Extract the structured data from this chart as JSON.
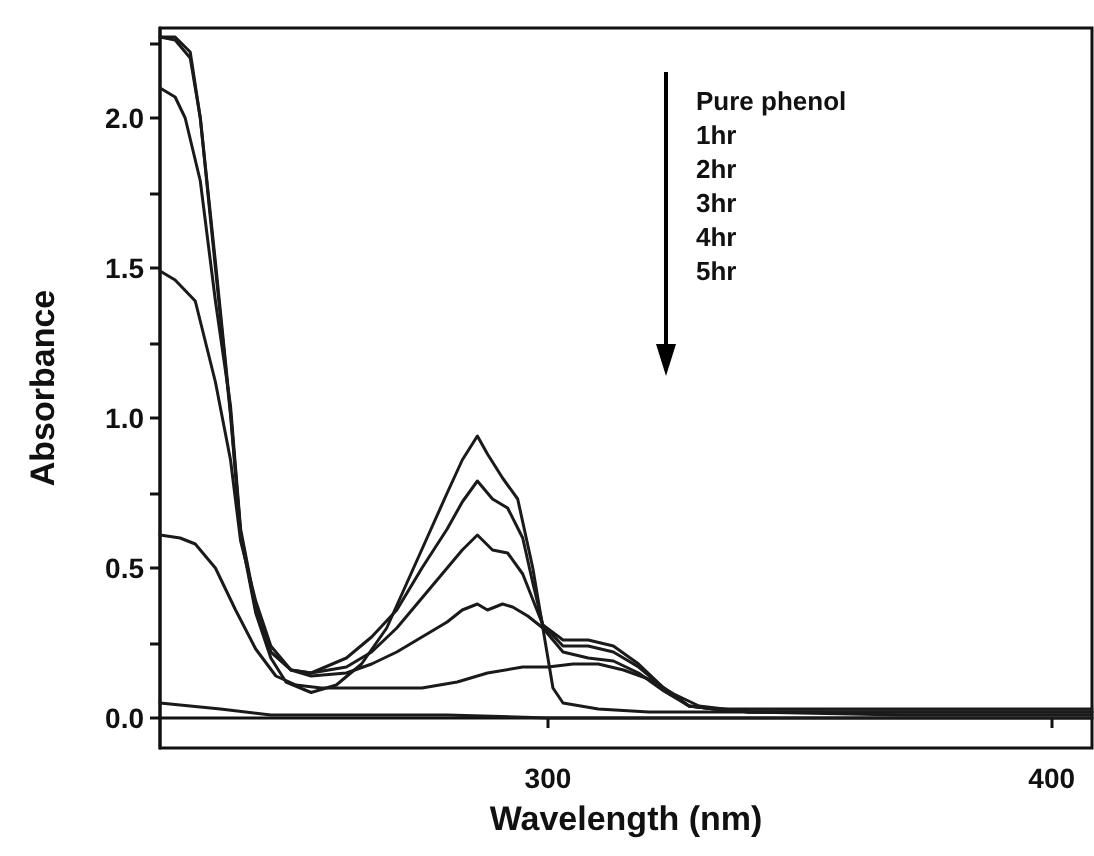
{
  "chart_data": {
    "type": "line",
    "xlabel": "Wavelength (nm)",
    "ylabel": "Absorbance",
    "xlim": [
      223,
      408
    ],
    "xticks": [
      300,
      400
    ],
    "ylim": [
      -0.1,
      2.3
    ],
    "yticks": [
      {
        "value": 0,
        "label": "0.0"
      },
      {
        "value": 0.25,
        "label": null
      },
      {
        "value": 0.5,
        "label": "0.5"
      },
      {
        "value": 0.75,
        "label": null
      },
      {
        "value": 1,
        "label": "1.0"
      },
      {
        "value": 1.25,
        "label": null
      },
      {
        "value": 1.5,
        "label": "1.5"
      },
      {
        "value": 1.75,
        "label": null
      },
      {
        "value": 2,
        "label": "2.0"
      },
      {
        "value": 2.25,
        "label": null
      }
    ],
    "annotations": [
      "Pure phenol",
      "1hr",
      "2hr",
      "3hr",
      "4hr",
      "5hr"
    ],
    "series": [
      {
        "color": "#1a1a1a",
        "x": [
          223,
          226,
          229,
          231,
          234,
          237,
          239,
          242,
          245,
          248,
          253,
          258,
          263,
          268,
          272,
          276,
          280,
          283,
          286,
          288,
          291,
          294,
          297,
          299,
          301,
          303,
          310,
          320,
          340,
          370,
          408
        ],
        "values": [
          2.27,
          2.27,
          2.22,
          2.0,
          1.5,
          1.01,
          0.61,
          0.35,
          0.2,
          0.12,
          0.085,
          0.11,
          0.18,
          0.3,
          0.45,
          0.6,
          0.75,
          0.86,
          0.94,
          0.88,
          0.8,
          0.73,
          0.5,
          0.3,
          0.1,
          0.05,
          0.03,
          0.02,
          0.02,
          0.02,
          0.02
        ]
      },
      {
        "color": "#1a1a1a",
        "x": [
          223,
          226,
          229,
          231,
          234,
          237,
          239,
          242,
          245,
          249,
          253,
          260,
          265,
          270,
          275,
          280,
          283,
          286,
          289,
          292,
          295,
          297,
          299,
          303,
          308,
          313,
          318,
          323,
          328,
          333,
          340,
          370,
          408
        ],
        "values": [
          2.27,
          2.26,
          2.2,
          2.0,
          1.52,
          1.02,
          0.62,
          0.36,
          0.22,
          0.16,
          0.15,
          0.2,
          0.27,
          0.36,
          0.5,
          0.63,
          0.72,
          0.79,
          0.73,
          0.7,
          0.6,
          0.45,
          0.31,
          0.26,
          0.26,
          0.24,
          0.18,
          0.1,
          0.04,
          0.03,
          0.03,
          0.03,
          0.03
        ]
      },
      {
        "color": "#1a1a1a",
        "x": [
          223,
          226,
          228,
          231,
          234,
          237,
          239,
          242,
          245,
          249,
          253,
          260,
          265,
          270,
          275,
          280,
          283,
          286,
          289,
          292,
          295,
          299,
          303,
          308,
          313,
          318,
          323,
          328,
          333,
          340,
          370,
          408
        ],
        "values": [
          2.1,
          2.07,
          2.0,
          1.79,
          1.39,
          1.04,
          0.63,
          0.37,
          0.22,
          0.16,
          0.15,
          0.17,
          0.22,
          0.3,
          0.4,
          0.5,
          0.56,
          0.61,
          0.56,
          0.55,
          0.48,
          0.31,
          0.24,
          0.24,
          0.22,
          0.17,
          0.1,
          0.04,
          0.03,
          0.02,
          0.02,
          0.02
        ]
      },
      {
        "color": "#1a1a1a",
        "x": [
          223,
          226,
          230,
          234,
          237,
          239,
          242,
          245,
          249,
          253,
          260,
          265,
          270,
          275,
          280,
          283,
          286,
          288,
          291,
          293,
          296,
          299,
          303,
          308,
          313,
          318,
          323,
          328,
          333,
          340,
          370,
          408
        ],
        "values": [
          1.49,
          1.46,
          1.39,
          1.12,
          0.86,
          0.59,
          0.39,
          0.24,
          0.16,
          0.14,
          0.15,
          0.18,
          0.22,
          0.27,
          0.32,
          0.36,
          0.38,
          0.36,
          0.38,
          0.37,
          0.34,
          0.3,
          0.22,
          0.2,
          0.19,
          0.15,
          0.09,
          0.04,
          0.03,
          0.02,
          0.02,
          0.02
        ]
      },
      {
        "color": "#1a1a1a",
        "x": [
          223,
          227,
          230,
          234,
          238,
          242,
          246,
          250,
          255,
          265,
          275,
          282,
          288,
          295,
          300,
          305,
          310,
          315,
          320,
          325,
          330,
          340,
          370,
          408
        ],
        "values": [
          0.61,
          0.6,
          0.58,
          0.5,
          0.36,
          0.23,
          0.14,
          0.11,
          0.1,
          0.1,
          0.1,
          0.12,
          0.15,
          0.17,
          0.17,
          0.18,
          0.18,
          0.16,
          0.13,
          0.08,
          0.04,
          0.02,
          0.01,
          0.01
        ]
      },
      {
        "color": "#1a1a1a",
        "x": [
          223,
          235,
          245,
          260,
          280,
          300,
          340,
          408
        ],
        "values": [
          0.05,
          0.03,
          0.01,
          0.01,
          0.01,
          0.0,
          0.0,
          0.0
        ]
      }
    ]
  }
}
